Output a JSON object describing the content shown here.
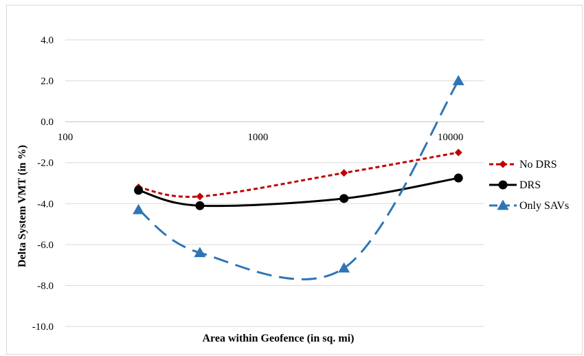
{
  "chart_data": {
    "type": "line",
    "title": "",
    "xlabel": "Area within Geofence (in sq. mi)",
    "ylabel": "Delta  System VMT (in %)",
    "xscale": "log",
    "xlim": [
      100,
      15000
    ],
    "ylim": [
      -10.0,
      4.0
    ],
    "ystep": 2.0,
    "xticks": [
      100,
      1000,
      10000
    ],
    "x_tick_labels": [
      "100",
      "1000",
      "10000"
    ],
    "y_tick_labels": [
      "-10.0",
      "-8.0",
      "-6.0",
      "-4.0",
      "-2.0",
      "0.0",
      "2.0",
      "4.0"
    ],
    "grid": "horizontal",
    "legend_position": "right",
    "x": [
      240,
      500,
      2800,
      11000
    ],
    "series": [
      {
        "name": "No DRS",
        "values": [
          -3.2,
          -3.65,
          -2.5,
          -1.5
        ],
        "color": "#c00000",
        "dash": "dotted",
        "marker": "diamond"
      },
      {
        "name": "DRS",
        "values": [
          -3.35,
          -4.1,
          -3.75,
          -2.75
        ],
        "color": "#000000",
        "dash": "solid",
        "marker": "circle"
      },
      {
        "name": "Only SAVs",
        "values": [
          -4.3,
          -6.4,
          -7.15,
          2.0
        ],
        "color": "#2e75b6",
        "dash": "dashed",
        "marker": "triangle"
      }
    ]
  }
}
